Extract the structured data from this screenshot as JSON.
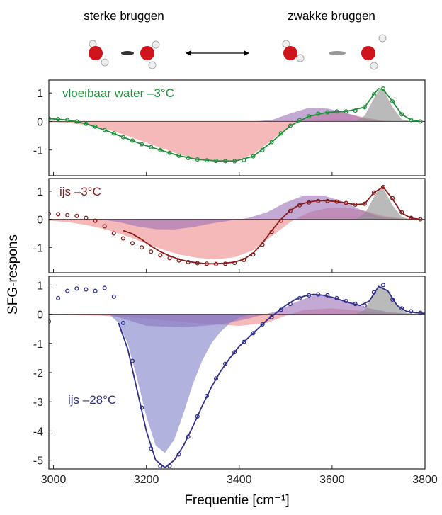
{
  "header": {
    "left": "sterke bruggen",
    "right": "zwakke bruggen"
  },
  "chart_data": [
    {
      "type": "line",
      "annotation": "vloeibaar water –3°C",
      "color": "#1f8f3a",
      "xlim": [
        2990,
        3800
      ],
      "xticks": [
        3000,
        3200,
        3400,
        3600,
        3800
      ],
      "xtick_labels": false,
      "ylim": [
        -1.9,
        1.45
      ],
      "yticks": [
        -1,
        0,
        1
      ],
      "series": [
        {
          "style": "area",
          "color": "#f08a8a",
          "x": [
            2990,
            3030,
            3070,
            3110,
            3150,
            3190,
            3230,
            3270,
            3310,
            3350,
            3390,
            3430,
            3470,
            3510,
            3550,
            3590,
            3630,
            3670,
            3710,
            3750,
            3790
          ],
          "values": [
            -0.02,
            -0.05,
            -0.12,
            -0.25,
            -0.45,
            -0.68,
            -0.92,
            -1.15,
            -1.31,
            -1.39,
            -1.38,
            -1.15,
            -0.66,
            -0.12,
            0.2,
            0.3,
            0.28,
            0.14,
            0.03,
            0,
            0
          ]
        },
        {
          "style": "area",
          "color": "#9b6fb8",
          "x": [
            3430,
            3470,
            3510,
            3550,
            3590,
            3630,
            3670,
            3710,
            3750
          ],
          "values": [
            0,
            0.05,
            0.28,
            0.48,
            0.45,
            0.3,
            0.1,
            0.01,
            0
          ]
        },
        {
          "style": "area",
          "color": "#8c8c8c",
          "x": [
            3650,
            3670,
            3690,
            3700,
            3710,
            3730,
            3750,
            3770
          ],
          "values": [
            0,
            0.2,
            0.8,
            1.1,
            1.12,
            0.5,
            0.08,
            0
          ]
        },
        {
          "style": "line",
          "color": "#1f8f3a",
          "x": [
            2990,
            3030,
            3070,
            3110,
            3150,
            3190,
            3230,
            3270,
            3310,
            3350,
            3390,
            3430,
            3470,
            3510,
            3550,
            3590,
            3630,
            3670,
            3690,
            3700,
            3710,
            3730,
            3750,
            3770,
            3790
          ],
          "values": [
            0.1,
            0.05,
            -0.08,
            -0.3,
            -0.55,
            -0.8,
            -1.0,
            -1.2,
            -1.33,
            -1.38,
            -1.39,
            -1.22,
            -0.72,
            -0.15,
            0.18,
            0.32,
            0.35,
            0.5,
            0.95,
            1.15,
            1.12,
            0.7,
            0.25,
            0.05,
            0.0
          ]
        },
        {
          "style": "points",
          "color": "#1f8f3a",
          "x": [
            2990,
            3010,
            3030,
            3050,
            3070,
            3090,
            3110,
            3130,
            3150,
            3170,
            3190,
            3210,
            3230,
            3250,
            3270,
            3290,
            3310,
            3330,
            3350,
            3370,
            3390,
            3410,
            3430,
            3450,
            3470,
            3490,
            3510,
            3530,
            3550,
            3570,
            3590,
            3610,
            3630,
            3650,
            3670,
            3690,
            3710,
            3730,
            3750,
            3770,
            3790
          ],
          "values": [
            0.1,
            0.08,
            0.05,
            0.0,
            -0.08,
            -0.18,
            -0.3,
            -0.42,
            -0.55,
            -0.67,
            -0.8,
            -0.9,
            -1.0,
            -1.1,
            -1.2,
            -1.28,
            -1.33,
            -1.36,
            -1.38,
            -1.39,
            -1.39,
            -1.35,
            -1.22,
            -1.0,
            -0.72,
            -0.42,
            -0.15,
            0.05,
            0.18,
            0.27,
            0.32,
            0.35,
            0.35,
            0.38,
            0.5,
            0.95,
            1.15,
            0.7,
            0.25,
            0.05,
            0.0
          ]
        }
      ]
    },
    {
      "type": "line",
      "annotation": "ijs –3°C",
      "color": "#8b1a1a",
      "ylabel": "SFG-respons",
      "xlim": [
        2990,
        3800
      ],
      "xticks": [
        3000,
        3200,
        3400,
        3600,
        3800
      ],
      "xtick_labels": false,
      "ylim": [
        -1.9,
        1.45
      ],
      "yticks": [
        -1,
        0,
        1
      ],
      "series": [
        {
          "style": "area",
          "color": "#f08a8a",
          "x": [
            2990,
            3030,
            3070,
            3110,
            3150,
            3190,
            3230,
            3270,
            3310,
            3350,
            3390,
            3430,
            3470,
            3510,
            3550,
            3590,
            3630,
            3670,
            3710,
            3750,
            3790
          ],
          "values": [
            -0.05,
            -0.1,
            -0.2,
            -0.35,
            -0.55,
            -0.8,
            -1.05,
            -1.25,
            -1.37,
            -1.42,
            -1.35,
            -1.1,
            -0.6,
            -0.1,
            0.25,
            0.4,
            0.42,
            0.3,
            0.12,
            0.03,
            0
          ]
        },
        {
          "style": "area",
          "color": "#9b6fb8",
          "x": [
            3100,
            3140,
            3180,
            3220,
            3260,
            3300,
            3340,
            3380,
            3420,
            3460,
            3500,
            3540,
            3580,
            3620,
            3660,
            3700,
            3740,
            3780
          ],
          "values": [
            0,
            -0.1,
            -0.25,
            -0.35,
            -0.36,
            -0.28,
            -0.15,
            -0.05,
            0.05,
            0.25,
            0.6,
            0.85,
            0.85,
            0.65,
            0.35,
            0.1,
            0.02,
            0
          ]
        },
        {
          "style": "area",
          "color": "#8c8c8c",
          "x": [
            3650,
            3670,
            3690,
            3700,
            3710,
            3730,
            3750,
            3770
          ],
          "values": [
            0,
            0.2,
            0.78,
            1.08,
            1.1,
            0.5,
            0.08,
            0
          ]
        },
        {
          "style": "line",
          "color": "#8b1a1a",
          "x": [
            3150,
            3170,
            3190,
            3210,
            3230,
            3250,
            3270,
            3290,
            3310,
            3330,
            3350,
            3370,
            3390,
            3410,
            3430,
            3450,
            3470,
            3490,
            3510,
            3530,
            3550,
            3570,
            3590,
            3610,
            3630,
            3650,
            3670,
            3690,
            3710,
            3730,
            3750,
            3770,
            3790
          ],
          "values": [
            -0.4,
            -0.52,
            -0.72,
            -0.95,
            -1.15,
            -1.3,
            -1.42,
            -1.5,
            -1.55,
            -1.58,
            -1.58,
            -1.56,
            -1.52,
            -1.42,
            -1.2,
            -0.85,
            -0.4,
            0.0,
            0.32,
            0.52,
            0.62,
            0.66,
            0.66,
            0.63,
            0.58,
            0.52,
            0.55,
            0.95,
            1.15,
            0.72,
            0.22,
            0.04,
            0.0
          ]
        },
        {
          "style": "points",
          "color": "#8b1a1a",
          "x": [
            2990,
            3010,
            3030,
            3050,
            3070,
            3090,
            3110,
            3130,
            3150,
            3170,
            3190,
            3210,
            3230,
            3250,
            3270,
            3290,
            3310,
            3330,
            3350,
            3370,
            3390,
            3410,
            3430,
            3450,
            3470,
            3490,
            3510,
            3530,
            3550,
            3570,
            3590,
            3610,
            3630,
            3650,
            3670,
            3690,
            3710,
            3730,
            3750,
            3770,
            3790
          ],
          "values": [
            0.2,
            0.18,
            0.15,
            0.12,
            0.05,
            -0.05,
            -0.25,
            -0.5,
            -0.68,
            -0.85,
            -1.0,
            -1.15,
            -1.28,
            -1.38,
            -1.46,
            -1.52,
            -1.56,
            -1.58,
            -1.59,
            -1.58,
            -1.55,
            -1.45,
            -1.25,
            -0.9,
            -0.45,
            -0.05,
            0.3,
            0.5,
            0.6,
            0.65,
            0.65,
            0.63,
            0.58,
            0.52,
            0.55,
            0.95,
            1.15,
            0.75,
            0.25,
            0.05,
            0.0
          ]
        }
      ]
    },
    {
      "type": "line",
      "annotation": "ijs –28°C",
      "color": "#2e2f8a",
      "xlabel": "Frequentie [cm⁻¹]",
      "xlim": [
        2990,
        3800
      ],
      "xticks": [
        3000,
        3200,
        3400,
        3600,
        3800
      ],
      "xtick_labels": true,
      "ylim": [
        -5.3,
        1.3
      ],
      "yticks": [
        -5,
        -4,
        -3,
        -2,
        -1,
        0,
        1
      ],
      "series": [
        {
          "style": "area",
          "color": "#f08a8a",
          "x": [
            2990,
            3100,
            3200,
            3300,
            3400,
            3460,
            3500,
            3540,
            3600,
            3660,
            3720,
            3800
          ],
          "values": [
            0,
            -0.05,
            -0.15,
            -0.3,
            -0.4,
            -0.3,
            -0.05,
            0.15,
            0.2,
            0.12,
            0.03,
            0
          ]
        },
        {
          "style": "area",
          "color": "#9b6fb8",
          "x": [
            3120,
            3200,
            3280,
            3360,
            3420,
            3480,
            3520,
            3560,
            3600,
            3640,
            3680,
            3720,
            3760,
            3800
          ],
          "values": [
            0,
            -0.4,
            -0.45,
            -0.35,
            -0.15,
            0.1,
            0.4,
            0.65,
            0.6,
            0.4,
            0.2,
            0.08,
            0.02,
            0
          ]
        },
        {
          "style": "area",
          "color": "#7f7fc8",
          "x": [
            3120,
            3140,
            3160,
            3180,
            3200,
            3220,
            3240,
            3260,
            3280,
            3300,
            3320,
            3340,
            3360,
            3380,
            3400,
            3420,
            3440
          ],
          "values": [
            0,
            -0.3,
            -1.0,
            -2.2,
            -3.5,
            -4.5,
            -4.75,
            -4.3,
            -3.4,
            -2.4,
            -1.6,
            -1.0,
            -0.6,
            -0.3,
            -0.12,
            -0.03,
            0
          ]
        },
        {
          "style": "area",
          "color": "#8c8c8c",
          "x": [
            3650,
            3670,
            3690,
            3705,
            3720,
            3740,
            3760,
            3780
          ],
          "values": [
            0,
            0.15,
            0.7,
            0.98,
            0.8,
            0.3,
            0.05,
            0
          ]
        },
        {
          "style": "line",
          "color": "#2e2f8a",
          "x": [
            3140,
            3160,
            3180,
            3200,
            3220,
            3240,
            3260,
            3280,
            3300,
            3320,
            3340,
            3360,
            3380,
            3400,
            3420,
            3440,
            3460,
            3480,
            3500,
            3520,
            3540,
            3560,
            3580,
            3600,
            3620,
            3640,
            3660,
            3680,
            3700,
            3720,
            3740,
            3760,
            3780,
            3800
          ],
          "values": [
            -0.3,
            -1.2,
            -2.6,
            -4.0,
            -5.0,
            -5.25,
            -5.0,
            -4.5,
            -3.85,
            -3.15,
            -2.5,
            -1.95,
            -1.5,
            -1.1,
            -0.8,
            -0.5,
            -0.2,
            0.05,
            0.3,
            0.5,
            0.62,
            0.68,
            0.65,
            0.58,
            0.48,
            0.38,
            0.3,
            0.45,
            0.95,
            0.8,
            0.3,
            0.1,
            0.05,
            0.03
          ]
        },
        {
          "style": "points",
          "color": "#2e2f8a",
          "x": [
            2990,
            3010,
            3030,
            3050,
            3070,
            3090,
            3110,
            3130,
            3150,
            3170,
            3190,
            3210,
            3230,
            3250,
            3270,
            3290,
            3310,
            3330,
            3350,
            3370,
            3390,
            3410,
            3430,
            3450,
            3470,
            3490,
            3510,
            3530,
            3550,
            3570,
            3590,
            3610,
            3630,
            3650,
            3670,
            3690,
            3710,
            3730,
            3750,
            3770,
            3790
          ],
          "values": [
            -0.25,
            0.55,
            0.8,
            0.88,
            0.85,
            0.8,
            0.9,
            0.6,
            -0.3,
            -1.6,
            -3.2,
            -4.6,
            -5.2,
            -5.2,
            -4.8,
            -4.2,
            -3.5,
            -2.8,
            -2.2,
            -1.7,
            -1.3,
            -0.95,
            -0.65,
            -0.35,
            -0.1,
            0.15,
            0.35,
            0.55,
            0.65,
            0.68,
            0.65,
            0.55,
            0.45,
            0.35,
            0.3,
            0.75,
            1.0,
            0.5,
            0.2,
            0.1,
            0.05
          ]
        }
      ]
    }
  ]
}
